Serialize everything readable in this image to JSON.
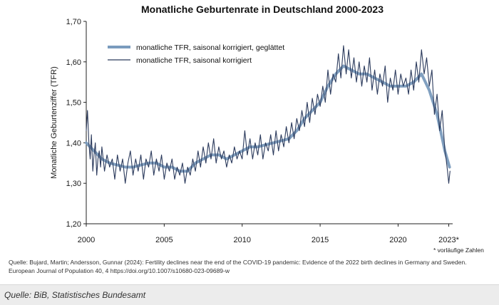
{
  "chart_data": {
    "type": "line",
    "title": "Monatliche Geburtenrate in Deutschland 2000-2023",
    "ylabel": "Monatliche Geburtenziffer (TFR)",
    "xlabel": "",
    "xlim": [
      2000,
      2023.5
    ],
    "ylim": [
      1.2,
      1.7
    ],
    "x_ticks": [
      2000,
      2005,
      2010,
      2015,
      2020,
      2023.25
    ],
    "x_tick_labels": [
      "2000",
      "2005",
      "2010",
      "2015",
      "2020",
      "2023*"
    ],
    "y_ticks": [
      1.2,
      1.3,
      1.4,
      1.5,
      1.6,
      1.7
    ],
    "y_tick_labels": [
      "1,20",
      "1,30",
      "1,40",
      "1,50",
      "1,60",
      "1,70"
    ],
    "grid": false,
    "legend_position": "top-left",
    "footnote": "* vorläufige Zahlen",
    "series": [
      {
        "name": "monatliche TFR, saisonal korrigiert, geglättet",
        "color": "#7a9bbd",
        "style": "thick",
        "x": [
          2000.0,
          2000.5,
          2001.0,
          2001.5,
          2002.0,
          2002.5,
          2003.0,
          2003.5,
          2004.0,
          2004.5,
          2005.0,
          2005.5,
          2006.0,
          2006.5,
          2007.0,
          2007.5,
          2008.0,
          2008.5,
          2009.0,
          2009.5,
          2010.0,
          2010.5,
          2011.0,
          2011.5,
          2012.0,
          2012.5,
          2013.0,
          2013.5,
          2014.0,
          2014.5,
          2015.0,
          2015.5,
          2016.0,
          2016.5,
          2017.0,
          2017.5,
          2018.0,
          2018.5,
          2019.0,
          2019.5,
          2020.0,
          2020.5,
          2021.0,
          2021.5,
          2022.0,
          2022.5,
          2023.0,
          2023.3
        ],
        "y": [
          1.4,
          1.38,
          1.36,
          1.35,
          1.345,
          1.34,
          1.34,
          1.345,
          1.35,
          1.35,
          1.34,
          1.34,
          1.33,
          1.33,
          1.35,
          1.36,
          1.37,
          1.37,
          1.36,
          1.37,
          1.38,
          1.39,
          1.39,
          1.395,
          1.4,
          1.405,
          1.41,
          1.43,
          1.46,
          1.48,
          1.5,
          1.54,
          1.57,
          1.59,
          1.58,
          1.57,
          1.57,
          1.56,
          1.55,
          1.54,
          1.54,
          1.54,
          1.55,
          1.57,
          1.53,
          1.47,
          1.38,
          1.34
        ]
      },
      {
        "name": "monatliche TFR, saisonal korrigiert",
        "color": "#2b3a5c",
        "style": "thin",
        "x": [
          2000.0,
          2000.08,
          2000.17,
          2000.25,
          2000.33,
          2000.42,
          2000.5,
          2000.58,
          2000.67,
          2000.75,
          2000.83,
          2000.92,
          2001.0,
          2001.17,
          2001.33,
          2001.5,
          2001.67,
          2001.83,
          2002.0,
          2002.17,
          2002.33,
          2002.5,
          2002.67,
          2002.83,
          2003.0,
          2003.17,
          2003.33,
          2003.5,
          2003.67,
          2003.83,
          2004.0,
          2004.17,
          2004.33,
          2004.5,
          2004.67,
          2004.83,
          2005.0,
          2005.17,
          2005.33,
          2005.5,
          2005.67,
          2005.83,
          2006.0,
          2006.17,
          2006.33,
          2006.5,
          2006.67,
          2006.83,
          2007.0,
          2007.17,
          2007.33,
          2007.5,
          2007.67,
          2007.83,
          2008.0,
          2008.17,
          2008.33,
          2008.5,
          2008.67,
          2008.83,
          2009.0,
          2009.17,
          2009.33,
          2009.5,
          2009.67,
          2009.83,
          2010.0,
          2010.17,
          2010.33,
          2010.5,
          2010.67,
          2010.83,
          2011.0,
          2011.17,
          2011.33,
          2011.5,
          2011.67,
          2011.83,
          2012.0,
          2012.17,
          2012.33,
          2012.5,
          2012.67,
          2012.83,
          2013.0,
          2013.17,
          2013.33,
          2013.5,
          2013.67,
          2013.83,
          2014.0,
          2014.17,
          2014.33,
          2014.5,
          2014.67,
          2014.83,
          2015.0,
          2015.17,
          2015.33,
          2015.5,
          2015.67,
          2015.83,
          2016.0,
          2016.17,
          2016.33,
          2016.5,
          2016.67,
          2016.83,
          2017.0,
          2017.17,
          2017.33,
          2017.5,
          2017.67,
          2017.83,
          2018.0,
          2018.17,
          2018.33,
          2018.5,
          2018.67,
          2018.83,
          2019.0,
          2019.17,
          2019.33,
          2019.5,
          2019.67,
          2019.83,
          2020.0,
          2020.17,
          2020.33,
          2020.5,
          2020.67,
          2020.83,
          2021.0,
          2021.17,
          2021.33,
          2021.5,
          2021.67,
          2021.83,
          2022.0,
          2022.17,
          2022.33,
          2022.5,
          2022.67,
          2022.83,
          2023.0,
          2023.08,
          2023.17,
          2023.25,
          2023.33
        ],
        "y": [
          1.43,
          1.48,
          1.4,
          1.36,
          1.42,
          1.33,
          1.37,
          1.4,
          1.32,
          1.36,
          1.38,
          1.34,
          1.39,
          1.33,
          1.37,
          1.34,
          1.36,
          1.31,
          1.37,
          1.33,
          1.36,
          1.3,
          1.35,
          1.38,
          1.32,
          1.36,
          1.33,
          1.37,
          1.31,
          1.36,
          1.34,
          1.38,
          1.32,
          1.36,
          1.33,
          1.37,
          1.31,
          1.35,
          1.33,
          1.36,
          1.31,
          1.34,
          1.32,
          1.35,
          1.3,
          1.34,
          1.32,
          1.36,
          1.33,
          1.38,
          1.34,
          1.39,
          1.35,
          1.4,
          1.36,
          1.41,
          1.35,
          1.39,
          1.36,
          1.38,
          1.34,
          1.37,
          1.35,
          1.39,
          1.36,
          1.38,
          1.36,
          1.43,
          1.37,
          1.41,
          1.36,
          1.4,
          1.37,
          1.42,
          1.36,
          1.4,
          1.38,
          1.42,
          1.37,
          1.43,
          1.38,
          1.42,
          1.39,
          1.44,
          1.4,
          1.45,
          1.41,
          1.46,
          1.43,
          1.48,
          1.44,
          1.5,
          1.45,
          1.51,
          1.47,
          1.52,
          1.49,
          1.54,
          1.5,
          1.58,
          1.52,
          1.57,
          1.55,
          1.62,
          1.56,
          1.64,
          1.57,
          1.63,
          1.56,
          1.61,
          1.55,
          1.6,
          1.54,
          1.59,
          1.55,
          1.61,
          1.53,
          1.58,
          1.52,
          1.57,
          1.54,
          1.59,
          1.5,
          1.56,
          1.53,
          1.58,
          1.52,
          1.57,
          1.54,
          1.56,
          1.52,
          1.58,
          1.53,
          1.6,
          1.55,
          1.63,
          1.57,
          1.61,
          1.54,
          1.58,
          1.47,
          1.52,
          1.43,
          1.48,
          1.38,
          1.36,
          1.33,
          1.3,
          1.33
        ]
      }
    ]
  },
  "citation": "Quelle: Bujard, Martin; Andersson, Gunnar (2024): Fertility declines near the end of the COVID-19 pandemic: Evidence of the 2022 birth declines in Germany and Sweden. European Journal of Population 40, 4 https://doi.org/10.1007/s10680-023-09689-w",
  "source": "Quelle: BiB, Statistisches Bundesamt"
}
